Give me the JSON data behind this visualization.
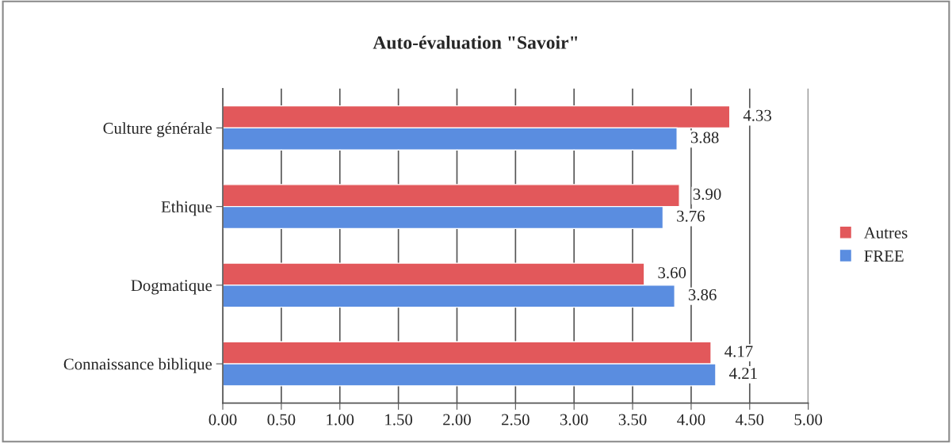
{
  "chart_data": {
    "type": "bar",
    "orientation": "horizontal",
    "title": "Auto-évaluation \"Savoir\"",
    "categories": [
      "Culture générale",
      "Ethique",
      "Dogmatique",
      "Connaissance biblique"
    ],
    "series": [
      {
        "name": "Autres",
        "color": "#e2585b",
        "values": [
          4.33,
          3.9,
          3.6,
          4.17
        ],
        "value_labels": [
          "4.33",
          "3.90",
          "3.60",
          "4.17"
        ]
      },
      {
        "name": "FREE",
        "color": "#5a8de0",
        "values": [
          3.88,
          3.76,
          3.86,
          4.21
        ],
        "value_labels": [
          "3.88",
          "3.76",
          "3.86",
          "4.21"
        ]
      }
    ],
    "xlim": [
      0,
      5
    ],
    "xticks": [
      {
        "value": 0,
        "label": "0.00"
      },
      {
        "value": 0.5,
        "label": "0.50"
      },
      {
        "value": 1,
        "label": "1.00"
      },
      {
        "value": 1.5,
        "label": "1.50"
      },
      {
        "value": 2,
        "label": "2.00"
      },
      {
        "value": 2.5,
        "label": "2.50"
      },
      {
        "value": 3,
        "label": "3.00"
      },
      {
        "value": 3.5,
        "label": "3.50"
      },
      {
        "value": 4,
        "label": "4.00"
      },
      {
        "value": 4.5,
        "label": "4.50"
      },
      {
        "value": 5,
        "label": "5.00"
      }
    ],
    "grid": "x",
    "legend": "right"
  }
}
